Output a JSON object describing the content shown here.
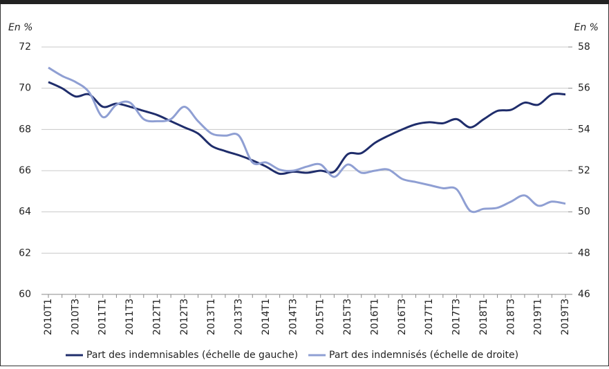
{
  "chart_data": {
    "type": "line",
    "y_unit_left": "En %",
    "y_unit_right": "En %",
    "categories": [
      "2010T1",
      null,
      "2010T3",
      null,
      "2011T1",
      null,
      "2011T3",
      null,
      "2012T1",
      null,
      "2012T3",
      null,
      "2013T1",
      null,
      "2013T3",
      null,
      "2014T1",
      null,
      "2014T3",
      null,
      "2015T1",
      null,
      "2015T3",
      null,
      "2016T1",
      null,
      "2016T3",
      null,
      "2017T1",
      null,
      "2017T3",
      null,
      "2018T1",
      null,
      "2018T3",
      null,
      "2019T1",
      null,
      "2019T3"
    ],
    "series": [
      {
        "name": "Part des indemnisables (échelle de gauche)",
        "color": "#1f2d6b",
        "values": [
          70.3,
          70.0,
          69.6,
          69.7,
          69.1,
          69.25,
          69.1,
          68.9,
          68.7,
          68.4,
          68.1,
          67.8,
          67.2,
          66.95,
          66.75,
          66.5,
          66.2,
          65.85,
          65.95,
          65.9,
          66.0,
          65.95,
          66.8,
          66.85,
          67.35,
          67.7,
          68.0,
          68.25,
          68.35,
          68.3,
          68.5,
          68.1,
          68.5,
          68.9,
          68.95,
          69.3,
          69.2,
          69.7,
          69.7
        ]
      },
      {
        "name": "Part des indemnisés (échelle de droite)",
        "color": "#8f9fd3",
        "axis": "y2",
        "values": [
          57.0,
          56.6,
          56.3,
          55.8,
          54.6,
          55.2,
          55.3,
          54.5,
          54.4,
          54.5,
          55.1,
          54.4,
          53.8,
          53.7,
          53.7,
          52.4,
          52.4,
          52.05,
          52.0,
          52.2,
          52.3,
          51.7,
          52.3,
          51.9,
          52.0,
          52.05,
          51.6,
          51.45,
          51.3,
          51.15,
          51.1,
          50.05,
          50.15,
          50.2,
          50.5,
          50.8,
          50.3,
          50.5,
          50.4
        ]
      }
    ],
    "ylim": [
      60,
      72
    ],
    "yticks": [
      60,
      62,
      64,
      66,
      68,
      70,
      72
    ],
    "y2lim": [
      46,
      58
    ],
    "y2ticks": [
      46,
      48,
      50,
      52,
      54,
      56,
      58
    ],
    "grid": true
  }
}
